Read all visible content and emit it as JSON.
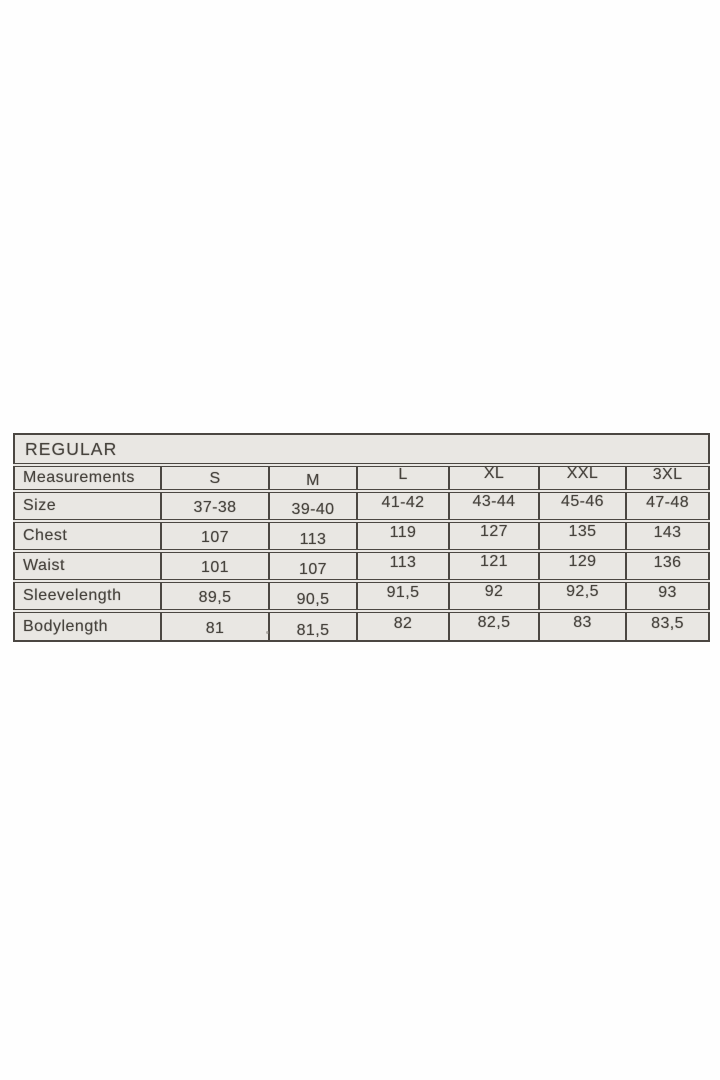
{
  "page": {
    "background_color": "#fefefe"
  },
  "size_chart": {
    "title": "REGULAR",
    "header": {
      "label": "Measurements",
      "sizes": [
        "S",
        "M",
        "L",
        "XL",
        "XXL",
        "3XL"
      ]
    },
    "rows": [
      {
        "label": "Size",
        "values": [
          "37-38",
          "39-40",
          "41-42",
          "43-44",
          "45-46",
          "47-48"
        ]
      },
      {
        "label": "Chest",
        "values": [
          "107",
          "113",
          "119",
          "127",
          "135",
          "143"
        ]
      },
      {
        "label": "Waist",
        "values": [
          "101",
          "107",
          "113",
          "121",
          "129",
          "136"
        ]
      },
      {
        "label": "Sleevelength",
        "values": [
          "89,5",
          "90,5",
          "91,5",
          "92",
          "92,5",
          "93"
        ]
      },
      {
        "label": "Bodylength",
        "values": [
          "81",
          "81,5",
          "82",
          "82,5",
          "83",
          "83,5"
        ]
      }
    ],
    "colors": {
      "cell_background": "#e9e7e3",
      "border": "#4b4742",
      "text": "#47433d"
    }
  }
}
